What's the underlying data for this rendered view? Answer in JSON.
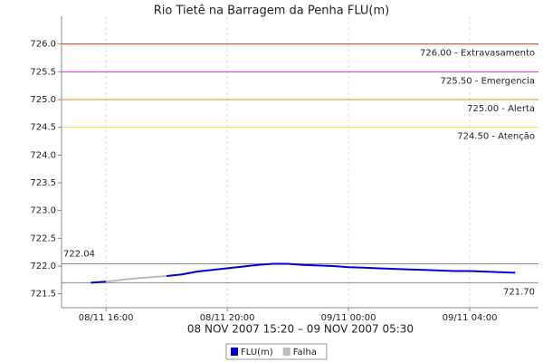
{
  "chart_data": {
    "type": "line",
    "title": "Rio Tietê na Barragem da Penha FLU(m)",
    "subtitle": "08 NOV 2007 15:20 – 09 NOV 2007 05:30",
    "x": [
      "2007-11-08T15:30",
      "2007-11-08T16:00",
      "2007-11-08T16:30",
      "2007-11-08T17:00",
      "2007-11-08T17:30",
      "2007-11-08T18:00",
      "2007-11-08T18:30",
      "2007-11-08T19:00",
      "2007-11-08T19:30",
      "2007-11-08T20:00",
      "2007-11-08T20:30",
      "2007-11-08T21:00",
      "2007-11-08T21:30",
      "2007-11-08T22:00",
      "2007-11-08T22:30",
      "2007-11-08T23:00",
      "2007-11-08T23:30",
      "2007-11-09T00:00",
      "2007-11-09T00:30",
      "2007-11-09T01:00",
      "2007-11-09T01:30",
      "2007-11-09T02:00",
      "2007-11-09T02:30",
      "2007-11-09T03:00",
      "2007-11-09T03:30",
      "2007-11-09T04:00",
      "2007-11-09T04:30",
      "2007-11-09T05:00",
      "2007-11-09T05:30"
    ],
    "series": [
      {
        "name": "FLU(m)",
        "color": "#0000dd",
        "values": [
          721.7,
          721.72,
          null,
          null,
          null,
          721.82,
          721.85,
          721.9,
          721.93,
          721.96,
          721.99,
          722.02,
          722.04,
          722.04,
          722.02,
          722.01,
          722.0,
          721.98,
          721.97,
          721.96,
          721.95,
          721.94,
          721.93,
          721.92,
          721.91,
          721.91,
          721.9,
          721.89,
          721.88
        ]
      },
      {
        "name": "Falha",
        "color": "#bbbbbb",
        "values": [
          721.7,
          721.72,
          721.75,
          721.78,
          721.8,
          721.82,
          null,
          null,
          null,
          null,
          null,
          null,
          null,
          null,
          null,
          null,
          null,
          null,
          null,
          null,
          null,
          null,
          null,
          null,
          null,
          null,
          null,
          null,
          null
        ]
      }
    ],
    "xlim": [
      "2007-11-08T14:32",
      "2007-11-09T06:16"
    ],
    "xticks": [
      {
        "value": "2007-11-08T16:00",
        "label": "08/11 16:00"
      },
      {
        "value": "2007-11-08T20:00",
        "label": "08/11 20:00"
      },
      {
        "value": "2007-11-09T00:00",
        "label": "09/11 00:00"
      },
      {
        "value": "2007-11-09T04:00",
        "label": "09/11 04:00"
      }
    ],
    "ylim": [
      721.25,
      726.5
    ],
    "yticks": [
      721.5,
      {
        "value": 722,
        "label": "722.0"
      },
      722.5,
      {
        "value": 723,
        "label": "723.0"
      },
      723.5,
      {
        "value": 724,
        "label": "724.0"
      },
      724.5,
      {
        "value": 725,
        "label": "725.0"
      },
      725.5,
      {
        "value": 726,
        "label": "726.0"
      }
    ],
    "xgrid": true,
    "markers": [
      {
        "value": 726.0,
        "label": "726.00 - Extravasamento",
        "color": "#cc3333",
        "side": "right"
      },
      {
        "value": 725.5,
        "label": "725.50 - Emergencia",
        "color": "#cc33cc",
        "side": "right"
      },
      {
        "value": 725.0,
        "label": "725.00 - Alerta",
        "color": "#ee8800",
        "side": "right"
      },
      {
        "value": 724.5,
        "label": "724.50 - Atenção",
        "color": "#eeee44",
        "side": "right"
      },
      {
        "value": 722.04,
        "label": "722.04",
        "color": "#888888",
        "side": "left"
      },
      {
        "value": 721.7,
        "label": "721.70",
        "color": "#888888",
        "side": "right"
      }
    ],
    "legend": "bottom"
  }
}
